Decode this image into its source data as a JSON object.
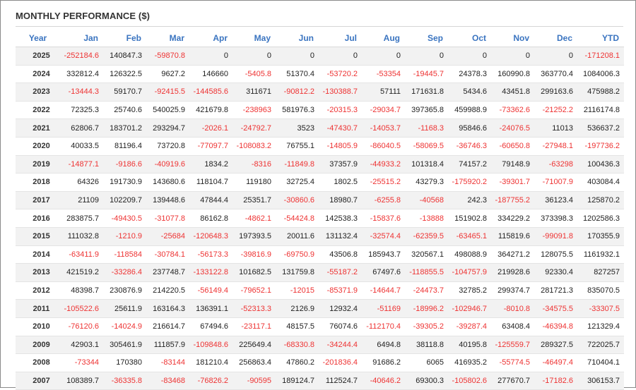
{
  "title": "MONTHLY PERFORMANCE ($)",
  "colors": {
    "header": "#3a74c0",
    "negative": "#ee3333",
    "positive": "#222222",
    "row_stripe": "#f2f2f2"
  },
  "columns": [
    "Year",
    "Jan",
    "Feb",
    "Mar",
    "Apr",
    "May",
    "Jun",
    "Jul",
    "Aug",
    "Sep",
    "Oct",
    "Nov",
    "Dec",
    "YTD"
  ],
  "rows": [
    [
      "2025",
      "-252184.6",
      "140847.3",
      "-59870.8",
      "0",
      "0",
      "0",
      "0",
      "0",
      "0",
      "0",
      "0",
      "0",
      "-171208.1"
    ],
    [
      "2024",
      "332812.4",
      "126322.5",
      "9627.2",
      "146660",
      "-5405.8",
      "51370.4",
      "-53720.2",
      "-53354",
      "-19445.7",
      "24378.3",
      "160990.8",
      "363770.4",
      "1084006.3"
    ],
    [
      "2023",
      "-13444.3",
      "59170.7",
      "-92415.5",
      "-144585.6",
      "311671",
      "-90812.2",
      "-130388.7",
      "57111",
      "171631.8",
      "5434.6",
      "43451.8",
      "299163.6",
      "475988.2"
    ],
    [
      "2022",
      "72325.3",
      "25740.6",
      "540025.9",
      "421679.8",
      "-238963",
      "581976.3",
      "-20315.3",
      "-29034.7",
      "397365.8",
      "459988.9",
      "-73362.6",
      "-21252.2",
      "2116174.8"
    ],
    [
      "2021",
      "62806.7",
      "183701.2",
      "293294.7",
      "-2026.1",
      "-24792.7",
      "3523",
      "-47430.7",
      "-14053.7",
      "-1168.3",
      "95846.6",
      "-24076.5",
      "11013",
      "536637.2"
    ],
    [
      "2020",
      "40033.5",
      "81196.4",
      "73720.8",
      "-77097.7",
      "-108083.2",
      "76755.1",
      "-14805.9",
      "-86040.5",
      "-58069.5",
      "-36746.3",
      "-60650.8",
      "-27948.1",
      "-197736.2"
    ],
    [
      "2019",
      "-14877.1",
      "-9186.6",
      "-40919.6",
      "1834.2",
      "-8316",
      "-11849.8",
      "37357.9",
      "-44933.2",
      "101318.4",
      "74157.2",
      "79148.9",
      "-63298",
      "100436.3"
    ],
    [
      "2018",
      "64326",
      "191730.9",
      "143680.6",
      "118104.7",
      "119180",
      "32725.4",
      "1802.5",
      "-25515.2",
      "43279.3",
      "-175920.2",
      "-39301.7",
      "-71007.9",
      "403084.4"
    ],
    [
      "2017",
      "21109",
      "102209.7",
      "139448.6",
      "47844.4",
      "25351.7",
      "-30860.6",
      "18980.7",
      "-6255.8",
      "-40568",
      "242.3",
      "-187755.2",
      "36123.4",
      "125870.2"
    ],
    [
      "2016",
      "283875.7",
      "-49430.5",
      "-31077.8",
      "86162.8",
      "-4862.1",
      "-54424.8",
      "142538.3",
      "-15837.6",
      "-13888",
      "151902.8",
      "334229.2",
      "373398.3",
      "1202586.3"
    ],
    [
      "2015",
      "111032.8",
      "-1210.9",
      "-25684",
      "-120648.3",
      "197393.5",
      "20011.6",
      "131132.4",
      "-32574.4",
      "-62359.5",
      "-63465.1",
      "115819.6",
      "-99091.8",
      "170355.9"
    ],
    [
      "2014",
      "-63411.9",
      "-118584",
      "-30784.1",
      "-56173.3",
      "-39816.9",
      "-69750.9",
      "43506.8",
      "185943.7",
      "320567.1",
      "498088.9",
      "364271.2",
      "128075.5",
      "1161932.1"
    ],
    [
      "2013",
      "421519.2",
      "-33286.4",
      "237748.7",
      "-133122.8",
      "101682.5",
      "131759.8",
      "-55187.2",
      "67497.6",
      "-118855.5",
      "-104757.9",
      "219928.6",
      "92330.4",
      "827257"
    ],
    [
      "2012",
      "48398.7",
      "230876.9",
      "214220.5",
      "-56149.4",
      "-79652.1",
      "-12015",
      "-85371.9",
      "-14644.7",
      "-24473.7",
      "32785.2",
      "299374.7",
      "281721.3",
      "835070.5"
    ],
    [
      "2011",
      "-105522.6",
      "25611.9",
      "163164.3",
      "136391.1",
      "-52313.3",
      "2126.9",
      "12932.4",
      "-51169",
      "-18996.2",
      "-102946.7",
      "-8010.8",
      "-34575.5",
      "-33307.5"
    ],
    [
      "2010",
      "-76120.6",
      "-14024.9",
      "216614.7",
      "67494.6",
      "-23117.1",
      "48157.5",
      "76074.6",
      "-112170.4",
      "-39305.2",
      "-39287.4",
      "63408.4",
      "-46394.8",
      "121329.4"
    ],
    [
      "2009",
      "42903.1",
      "305461.9",
      "111857.9",
      "-109848.6",
      "225649.4",
      "-68330.8",
      "-34244.4",
      "6494.8",
      "38118.8",
      "40195.8",
      "-125559.7",
      "289327.5",
      "722025.7"
    ],
    [
      "2008",
      "-73344",
      "170380",
      "-83144",
      "181210.4",
      "256863.4",
      "47860.2",
      "-201836.4",
      "91686.2",
      "6065",
      "416935.2",
      "-55774.5",
      "-46497.4",
      "710404.1"
    ],
    [
      "2007",
      "108389.7",
      "-36335.8",
      "-83468",
      "-76826.2",
      "-90595",
      "189124.7",
      "112524.7",
      "-40646.2",
      "69300.3",
      "-105802.6",
      "277670.7",
      "-17182.6",
      "306153.7"
    ]
  ]
}
